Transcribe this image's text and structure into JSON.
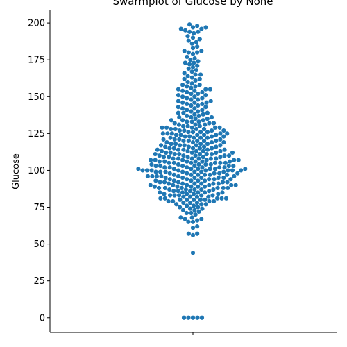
{
  "chart_data": {
    "type": "swarm",
    "title": "Swarmplot of Glucose by None",
    "xlabel": "",
    "ylabel": "Glucose",
    "ylim": [
      -10,
      209
    ],
    "yticks": [
      0,
      25,
      50,
      75,
      100,
      125,
      150,
      175,
      200
    ],
    "ytick_labels": [
      "0",
      "25",
      "50",
      "75",
      "100",
      "125",
      "150",
      "175",
      "200"
    ],
    "grid": false,
    "point_color": "#1f77b4",
    "series": [
      {
        "values": [
          0,
          0,
          0,
          0,
          0,
          44,
          56,
          57,
          57,
          61,
          62,
          65,
          65,
          66,
          67,
          67,
          68,
          68,
          70,
          71,
          71,
          72,
          73,
          73,
          74,
          74,
          75,
          75,
          76,
          76,
          77,
          77,
          77,
          78,
          78,
          78,
          79,
          79,
          79,
          79,
          80,
          80,
          80,
          80,
          80,
          81,
          81,
          81,
          81,
          81,
          82,
          82,
          82,
          82,
          83,
          83,
          83,
          83,
          83,
          84,
          84,
          84,
          84,
          85,
          85,
          85,
          85,
          85,
          86,
          86,
          86,
          86,
          87,
          87,
          87,
          87,
          87,
          88,
          88,
          88,
          88,
          88,
          88,
          89,
          89,
          89,
          89,
          89,
          90,
          90,
          90,
          90,
          90,
          90,
          91,
          91,
          91,
          91,
          91,
          91,
          92,
          92,
          92,
          92,
          92,
          93,
          93,
          93,
          93,
          93,
          94,
          94,
          94,
          94,
          94,
          95,
          95,
          95,
          95,
          95,
          95,
          96,
          96,
          96,
          96,
          96,
          96,
          97,
          97,
          97,
          97,
          97,
          97,
          98,
          98,
          98,
          98,
          98,
          99,
          99,
          99,
          99,
          99,
          99,
          99,
          100,
          100,
          100,
          100,
          100,
          100,
          100,
          100,
          101,
          101,
          101,
          101,
          101,
          101,
          101,
          102,
          102,
          102,
          102,
          102,
          102,
          103,
          103,
          103,
          103,
          103,
          103,
          104,
          104,
          104,
          104,
          104,
          105,
          105,
          105,
          105,
          105,
          105,
          106,
          106,
          106,
          106,
          106,
          106,
          107,
          107,
          107,
          107,
          107,
          107,
          108,
          108,
          108,
          108,
          108,
          108,
          109,
          109,
          109,
          109,
          109,
          110,
          110,
          110,
          110,
          110,
          111,
          111,
          111,
          111,
          111,
          111,
          112,
          112,
          112,
          112,
          112,
          113,
          113,
          113,
          113,
          113,
          114,
          114,
          114,
          114,
          114,
          115,
          115,
          115,
          115,
          115,
          116,
          116,
          116,
          116,
          117,
          117,
          117,
          117,
          117,
          118,
          118,
          118,
          118,
          119,
          119,
          119,
          119,
          120,
          120,
          120,
          120,
          120,
          121,
          121,
          121,
          121,
          122,
          122,
          122,
          122,
          123,
          123,
          123,
          123,
          124,
          124,
          124,
          124,
          124,
          125,
          125,
          125,
          125,
          125,
          126,
          126,
          126,
          126,
          127,
          127,
          127,
          127,
          128,
          128,
          128,
          128,
          129,
          129,
          129,
          129,
          129,
          130,
          130,
          130,
          131,
          131,
          131,
          132,
          132,
          132,
          133,
          133,
          133,
          134,
          134,
          134,
          135,
          135,
          136,
          136,
          136,
          137,
          137,
          138,
          138,
          139,
          139,
          139,
          140,
          140,
          141,
          141,
          142,
          142,
          143,
          143,
          144,
          144,
          145,
          145,
          146,
          146,
          146,
          147,
          147,
          148,
          148,
          149,
          149,
          150,
          150,
          151,
          151,
          152,
          152,
          153,
          153,
          154,
          154,
          155,
          155,
          155,
          156,
          157,
          157,
          158,
          158,
          159,
          160,
          161,
          162,
          162,
          163,
          164,
          165,
          165,
          166,
          167,
          168,
          169,
          170,
          171,
          172,
          173,
          173,
          174,
          175,
          176,
          177,
          179,
          180,
          180,
          181,
          181,
          183,
          184,
          186,
          187,
          188,
          189,
          190,
          191,
          193,
          194,
          194,
          195,
          196,
          196,
          197,
          197,
          198,
          199
        ]
      }
    ]
  }
}
